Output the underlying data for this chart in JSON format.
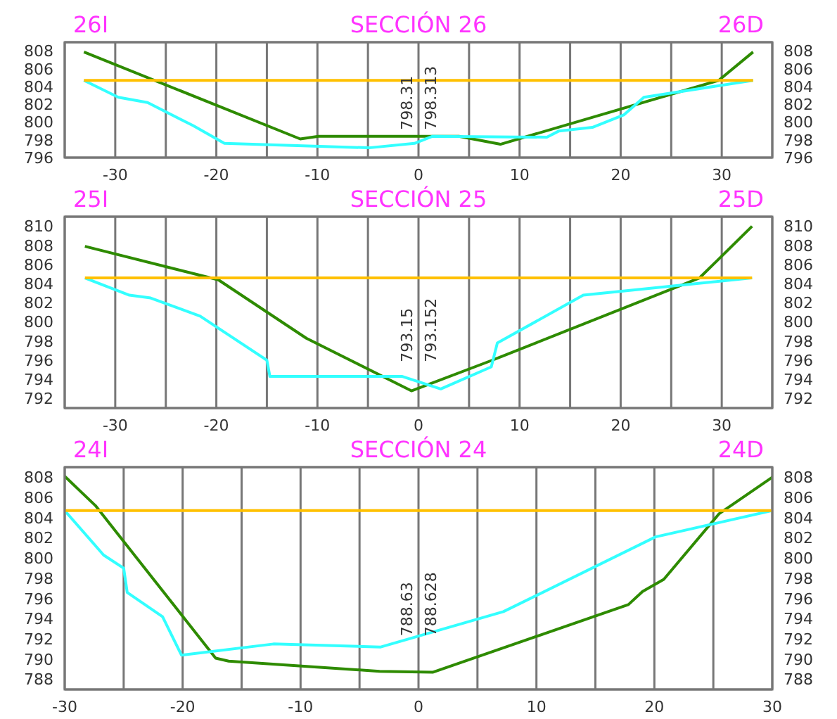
{
  "chart_data": [
    {
      "type": "line",
      "title": "SECCIÓN 26",
      "annotations": [
        "26I",
        "26D",
        "798.31",
        "798.313"
      ],
      "xlim": [
        -35,
        35
      ],
      "xticks": [
        {
          "value": -35,
          "label": null
        },
        -30,
        {
          "value": -25,
          "label": null
        },
        -20,
        {
          "value": -15,
          "label": null
        },
        -10,
        {
          "value": -5,
          "label": null
        },
        0,
        {
          "value": 5,
          "label": null
        },
        10,
        {
          "value": 15,
          "label": null
        },
        20,
        {
          "value": 25,
          "label": null
        },
        30,
        {
          "value": 35,
          "label": null
        }
      ],
      "ylim": [
        796,
        809
      ],
      "yticks": [
        796,
        798,
        800,
        802,
        804,
        806,
        808
      ],
      "y2lim": [
        796,
        809
      ],
      "y2ticks": [
        796,
        798,
        800,
        802,
        804,
        806,
        808
      ],
      "grid": true,
      "marker": "none",
      "series": [
        {
          "color": "#2e8b00",
          "x": [
            -33.1,
            -11.7,
            -9.9,
            4,
            8.1,
            29.7,
            33.1
          ],
          "values": [
            807.9,
            798.1,
            798.4,
            798.4,
            797.5,
            804.7,
            807.9
          ]
        },
        {
          "color": "#33ffff",
          "x": [
            -33.1,
            -29.7,
            -26.8,
            -22.3,
            -19.2,
            -4.9,
            -0.4,
            1.4,
            12.7,
            13.9,
            17.2,
            20.3,
            22.3,
            33.1
          ],
          "values": [
            804.7,
            802.8,
            802.2,
            799.6,
            797.6,
            797.1,
            797.6,
            798.4,
            798.3,
            799.0,
            799.4,
            800.8,
            802.8,
            804.7
          ]
        },
        {
          "color": "#ffc000",
          "x": [
            -33.1,
            33.1
          ],
          "values": [
            804.7,
            804.7
          ]
        }
      ]
    },
    {
      "type": "line",
      "title": "SECCIÓN 25",
      "annotations": [
        "25I",
        "25D",
        "793.15",
        "793.152"
      ],
      "xlim": [
        -35,
        35
      ],
      "xticks": [
        {
          "value": -35,
          "label": null
        },
        -30,
        {
          "value": -25,
          "label": null
        },
        -20,
        {
          "value": -15,
          "label": null
        },
        -10,
        {
          "value": -5,
          "label": null
        },
        0,
        {
          "value": 5,
          "label": null
        },
        10,
        {
          "value": 15,
          "label": null
        },
        20,
        {
          "value": 25,
          "label": null
        },
        30,
        {
          "value": 35,
          "label": null
        }
      ],
      "ylim": [
        791,
        811
      ],
      "yticks": [
        792,
        794,
        796,
        798,
        800,
        802,
        804,
        806,
        808,
        810
      ],
      "y2lim": [
        791,
        811
      ],
      "y2ticks": [
        792,
        794,
        796,
        798,
        800,
        802,
        804,
        806,
        808,
        810
      ],
      "grid": true,
      "marker": "none",
      "series": [
        {
          "color": "#2e8b00",
          "x": [
            -33,
            -19.8,
            -11.1,
            -0.7,
            7.3,
            27.8,
            33
          ],
          "values": [
            807.9,
            804.4,
            798.3,
            792.8,
            796.0,
            804.6,
            810
          ]
        },
        {
          "color": "#33ffff",
          "x": [
            -33,
            -28.6,
            -26.5,
            -21.6,
            -15,
            -14.7,
            -1.6,
            2.2,
            7.2,
            7.8,
            16.3,
            33
          ],
          "values": [
            804.6,
            802.8,
            802.5,
            800.6,
            796,
            794.3,
            794.3,
            793.0,
            795.3,
            797.8,
            802.8,
            804.6
          ]
        },
        {
          "color": "#ffc000",
          "x": [
            -33,
            33
          ],
          "values": [
            804.6,
            804.6
          ]
        }
      ]
    },
    {
      "type": "line",
      "title": "SECCIÓN 24",
      "annotations": [
        "24I",
        "24D",
        "788.63",
        "788.628"
      ],
      "xlim": [
        -30,
        30
      ],
      "xticks": [
        -30,
        {
          "value": -25,
          "label": null
        },
        -20,
        {
          "value": -15,
          "label": null
        },
        -10,
        {
          "value": -5,
          "label": null
        },
        0,
        {
          "value": 5,
          "label": null
        },
        10,
        {
          "value": 15,
          "label": null
        },
        20,
        {
          "value": 25,
          "label": null
        },
        30
      ],
      "ylim": [
        787,
        809
      ],
      "yticks": [
        788,
        790,
        792,
        794,
        796,
        798,
        800,
        802,
        804,
        806,
        808
      ],
      "y2lim": [
        787,
        809
      ],
      "y2ticks": [
        788,
        790,
        792,
        794,
        796,
        798,
        800,
        802,
        804,
        806,
        808
      ],
      "grid": true,
      "marker": "none",
      "series": [
        {
          "color": "#2e8b00",
          "x": [
            -30,
            -27.4,
            -17.2,
            -16.1,
            -3.3,
            1.2,
            17.8,
            19,
            20.8,
            25.5,
            30
          ],
          "values": [
            808.1,
            805.2,
            790.1,
            789.8,
            788.8,
            788.7,
            795.4,
            796.7,
            797.9,
            804.4,
            808
          ]
        },
        {
          "color": "#33ffff",
          "x": [
            -30,
            -26.7,
            -25,
            -24.7,
            -21.7,
            -20.1,
            -12.3,
            -3.2,
            7.2,
            20.1,
            30
          ],
          "values": [
            804.7,
            800.3,
            799,
            796.6,
            794.2,
            790.4,
            791.5,
            791.2,
            794.7,
            802.1,
            804.7
          ]
        },
        {
          "color": "#ffc000",
          "x": [
            -30,
            30
          ],
          "values": [
            804.7,
            804.7
          ]
        }
      ]
    }
  ]
}
